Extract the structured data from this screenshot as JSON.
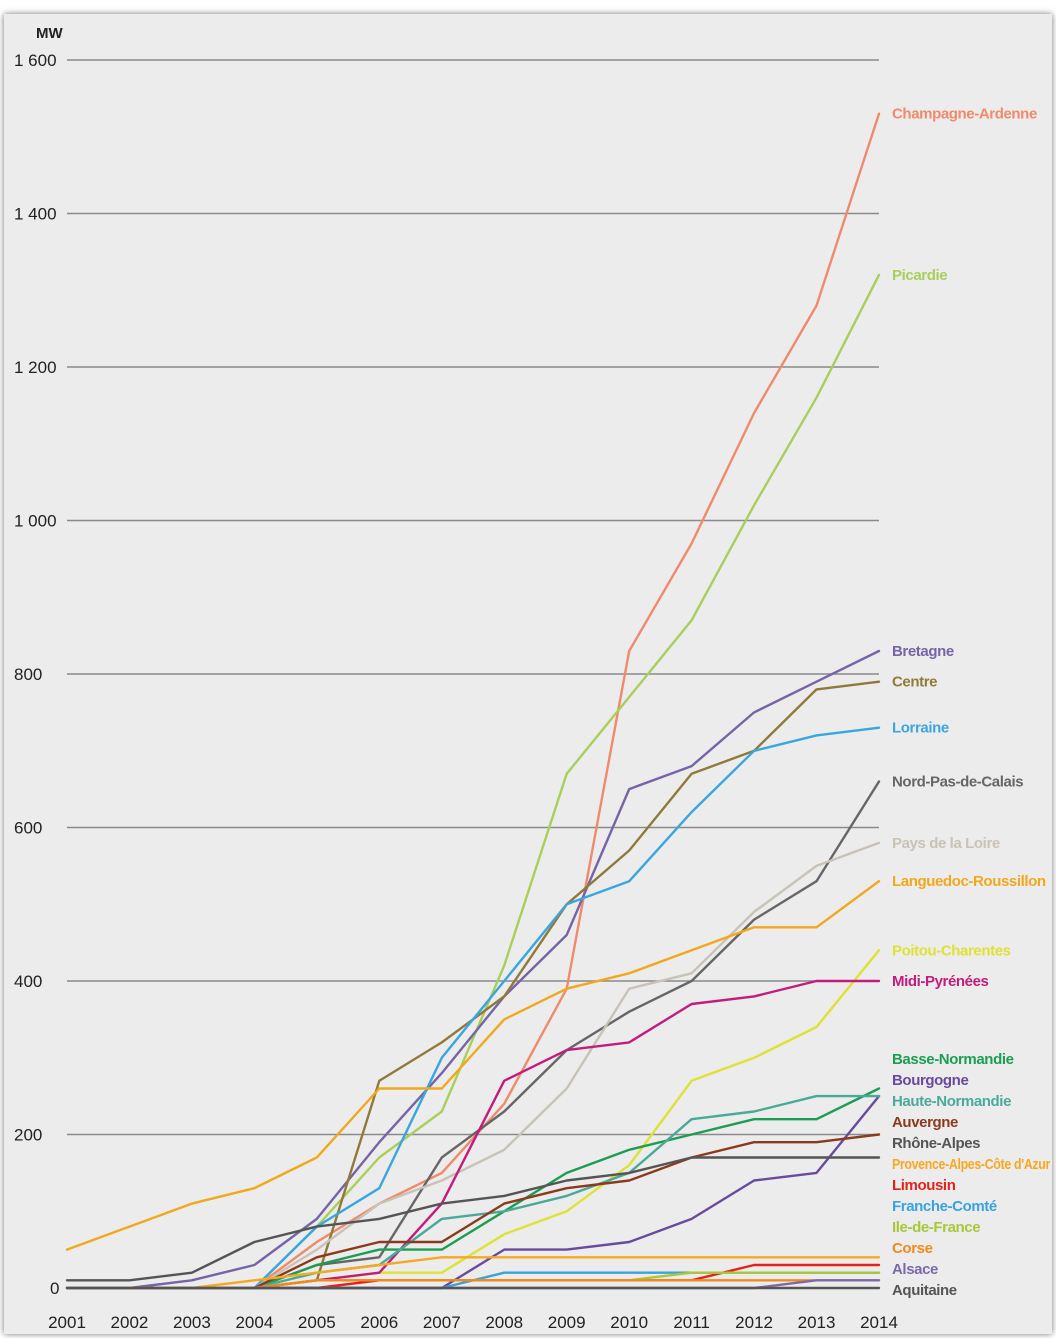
{
  "chart_data": {
    "type": "line",
    "ylabel": "MW",
    "ylim": [
      0,
      1600
    ],
    "grid": true,
    "legend_placement": "right",
    "x": [
      2001,
      2002,
      2003,
      2004,
      2005,
      2006,
      2007,
      2008,
      2009,
      2010,
      2011,
      2012,
      2013,
      2014
    ],
    "x_ticks": [
      "2001",
      "2002",
      "2003",
      "2004",
      "2005",
      "2006",
      "2007",
      "2008",
      "2009",
      "2010",
      "2011",
      "2012",
      "2013",
      "2014"
    ],
    "y_ticks": [
      {
        "value": 0,
        "label": "0"
      },
      {
        "value": 200,
        "label": "200"
      },
      {
        "value": 400,
        "label": "400"
      },
      {
        "value": 600,
        "label": "600"
      },
      {
        "value": 800,
        "label": "800"
      },
      {
        "value": 1000,
        "label": "1 000"
      },
      {
        "value": 1200,
        "label": "1 200"
      },
      {
        "value": 1400,
        "label": "1 400"
      },
      {
        "value": 1600,
        "label": "1 600"
      }
    ],
    "series": [
      {
        "name": "Champagne-Ardenne",
        "color": "#f08a6c",
        "values": [
          0,
          0,
          0,
          0,
          60,
          110,
          150,
          240,
          390,
          830,
          970,
          1140,
          1280,
          1530
        ]
      },
      {
        "name": "Picardie",
        "color": "#a9cf5a",
        "values": [
          0,
          0,
          0,
          0,
          80,
          170,
          230,
          420,
          670,
          770,
          870,
          1020,
          1160,
          1320
        ]
      },
      {
        "name": "Bretagne",
        "color": "#7664a6",
        "values": [
          0,
          0,
          10,
          30,
          90,
          190,
          280,
          380,
          460,
          650,
          680,
          750,
          790,
          830
        ]
      },
      {
        "name": "Centre",
        "color": "#8f7a3c",
        "values": [
          0,
          0,
          0,
          0,
          10,
          270,
          320,
          380,
          500,
          570,
          670,
          700,
          780,
          790
        ]
      },
      {
        "name": "Lorraine",
        "color": "#3aa6df",
        "values": [
          0,
          0,
          0,
          0,
          80,
          130,
          300,
          400,
          500,
          530,
          620,
          700,
          720,
          730
        ]
      },
      {
        "name": "Nord-Pas-de-Calais",
        "color": "#666666",
        "values": [
          0,
          0,
          0,
          0,
          30,
          40,
          170,
          230,
          310,
          360,
          400,
          480,
          530,
          660
        ]
      },
      {
        "name": "Pays de la Loire",
        "color": "#c9c2b6",
        "values": [
          0,
          0,
          0,
          0,
          50,
          110,
          140,
          180,
          260,
          390,
          410,
          490,
          550,
          580
        ]
      },
      {
        "name": "Languedoc-Roussillon",
        "color": "#f2a81d",
        "values": [
          50,
          80,
          110,
          130,
          170,
          260,
          260,
          350,
          390,
          410,
          440,
          470,
          470,
          530
        ]
      },
      {
        "name": "Poitou-Charentes",
        "color": "#dde233",
        "values": [
          0,
          0,
          0,
          0,
          10,
          20,
          20,
          70,
          100,
          160,
          270,
          300,
          340,
          440
        ]
      },
      {
        "name": "Midi-Pyrénées",
        "color": "#c21d7c",
        "values": [
          0,
          0,
          0,
          0,
          10,
          20,
          110,
          270,
          310,
          320,
          370,
          380,
          400,
          400
        ]
      },
      {
        "name": "Basse-Normandie",
        "color": "#1b9e52",
        "values": [
          0,
          0,
          0,
          0,
          30,
          50,
          50,
          100,
          150,
          180,
          200,
          220,
          220,
          260
        ]
      },
      {
        "name": "Bourgogne",
        "color": "#684a9e",
        "values": [
          0,
          0,
          0,
          0,
          0,
          0,
          0,
          50,
          50,
          60,
          90,
          140,
          150,
          250
        ]
      },
      {
        "name": "Haute-Normandie",
        "color": "#4aaa99",
        "values": [
          0,
          0,
          0,
          0,
          20,
          30,
          90,
          100,
          120,
          150,
          220,
          230,
          250,
          250
        ]
      },
      {
        "name": "Auvergne",
        "color": "#8c3a1e",
        "values": [
          0,
          0,
          0,
          0,
          40,
          60,
          60,
          110,
          130,
          140,
          170,
          190,
          190,
          200
        ]
      },
      {
        "name": "Rhône-Alpes",
        "color": "#555555",
        "values": [
          10,
          10,
          20,
          60,
          80,
          90,
          110,
          120,
          140,
          150,
          170,
          170,
          170,
          170
        ]
      },
      {
        "name": "Limousin",
        "color": "#e2231a",
        "values": [
          0,
          0,
          0,
          0,
          0,
          10,
          10,
          10,
          10,
          10,
          10,
          30,
          30,
          30
        ]
      },
      {
        "name": "Provence-Alpes-Côte d'Azur",
        "color": "#f7a823",
        "values": [
          0,
          0,
          0,
          10,
          20,
          30,
          40,
          40,
          40,
          40,
          40,
          40,
          40,
          40
        ]
      },
      {
        "name": "Franche-Comté",
        "color": "#39a3dc",
        "values": [
          0,
          0,
          0,
          0,
          0,
          0,
          0,
          20,
          20,
          20,
          20,
          20,
          20,
          20
        ]
      },
      {
        "name": "Ile-de-France",
        "color": "#a8c83a",
        "values": [
          0,
          0,
          0,
          0,
          10,
          10,
          10,
          10,
          10,
          10,
          20,
          20,
          20,
          20
        ]
      },
      {
        "name": "Corse",
        "color": "#f08a1f",
        "values": [
          0,
          0,
          0,
          0,
          10,
          10,
          10,
          10,
          10,
          10,
          10,
          10,
          10,
          10
        ]
      },
      {
        "name": "Alsace",
        "color": "#7c6aa8",
        "values": [
          0,
          0,
          0,
          0,
          0,
          0,
          0,
          0,
          0,
          0,
          0,
          0,
          10,
          10
        ]
      },
      {
        "name": "Aquitaine",
        "color": "#555555",
        "values": [
          0,
          0,
          0,
          0,
          0,
          0,
          0,
          0,
          0,
          0,
          0,
          0,
          0,
          0
        ]
      }
    ]
  }
}
